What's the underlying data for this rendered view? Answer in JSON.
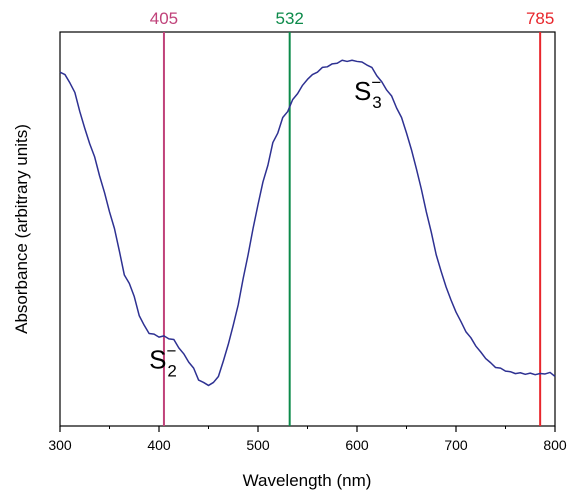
{
  "chart_data": {
    "type": "line",
    "xlabel": "Wavelength (nm)",
    "ylabel": "Absorbance (arbitrary units)",
    "xlim": [
      300,
      800
    ],
    "ylim": [
      0,
      1
    ],
    "x_ticks": [
      "300",
      "400",
      "500",
      "600",
      "700",
      "800"
    ],
    "y_ticks": [],
    "grid": false,
    "series": [
      {
        "color": "#2e3192",
        "x": [
          300,
          305,
          310,
          315,
          320,
          325,
          330,
          335,
          340,
          345,
          350,
          355,
          360,
          365,
          370,
          375,
          380,
          385,
          390,
          395,
          400,
          405,
          410,
          415,
          420,
          425,
          430,
          435,
          440,
          445,
          450,
          455,
          460,
          465,
          470,
          475,
          480,
          485,
          490,
          495,
          500,
          505,
          510,
          515,
          520,
          525,
          530,
          535,
          540,
          545,
          550,
          555,
          560,
          565,
          570,
          575,
          580,
          585,
          590,
          595,
          600,
          605,
          610,
          615,
          620,
          625,
          630,
          635,
          640,
          645,
          650,
          655,
          660,
          665,
          670,
          675,
          680,
          685,
          690,
          695,
          700,
          705,
          710,
          715,
          720,
          725,
          730,
          735,
          740,
          745,
          750,
          755,
          760,
          765,
          770,
          775,
          780,
          785,
          790,
          795,
          800
        ],
        "y": [
          0.99,
          0.98,
          0.96,
          0.93,
          0.88,
          0.83,
          0.79,
          0.75,
          0.7,
          0.65,
          0.6,
          0.55,
          0.49,
          0.42,
          0.4,
          0.36,
          0.31,
          0.28,
          0.26,
          0.255,
          0.25,
          0.25,
          0.245,
          0.24,
          0.22,
          0.2,
          0.18,
          0.16,
          0.13,
          0.12,
          0.115,
          0.12,
          0.14,
          0.18,
          0.23,
          0.28,
          0.34,
          0.41,
          0.48,
          0.55,
          0.62,
          0.68,
          0.73,
          0.79,
          0.82,
          0.86,
          0.88,
          0.91,
          0.93,
          0.95,
          0.97,
          0.98,
          0.99,
          1.0,
          1.005,
          1.01,
          1.015,
          1.02,
          1.02,
          1.02,
          1.02,
          1.015,
          1.01,
          1.0,
          0.98,
          0.96,
          0.94,
          0.92,
          0.89,
          0.86,
          0.82,
          0.77,
          0.72,
          0.66,
          0.6,
          0.54,
          0.48,
          0.43,
          0.39,
          0.35,
          0.32,
          0.29,
          0.265,
          0.245,
          0.225,
          0.205,
          0.19,
          0.175,
          0.165,
          0.16,
          0.155,
          0.15,
          0.148,
          0.147,
          0.146,
          0.146,
          0.145,
          0.145,
          0.147,
          0.148,
          0.14
        ]
      }
    ],
    "laser_lines": [
      {
        "x": 405,
        "label": "405",
        "color": "#c0427a"
      },
      {
        "x": 532,
        "label": "532",
        "color": "#0c8a4a"
      },
      {
        "x": 785,
        "label": "785",
        "color": "#e8262c"
      }
    ],
    "annotations": [
      {
        "base": "S",
        "sub": "2",
        "sup": "−",
        "x": 390,
        "y": 0.16
      },
      {
        "base": "S",
        "sub": "3",
        "sup": "−",
        "x": 597,
        "y": 0.91
      }
    ]
  }
}
